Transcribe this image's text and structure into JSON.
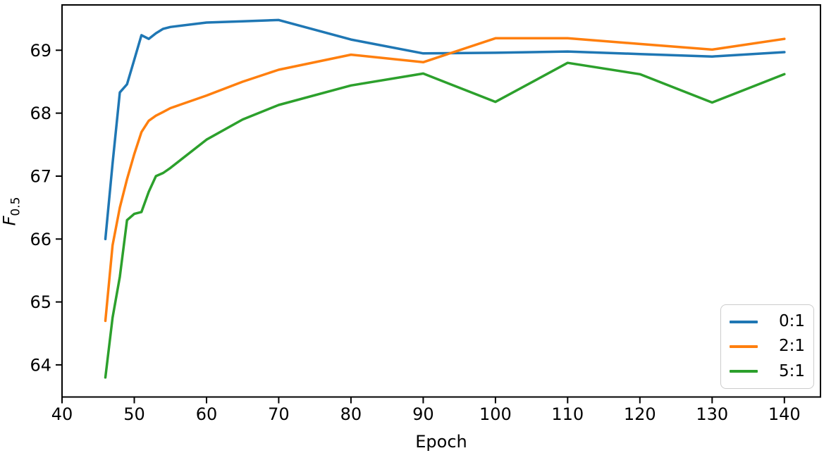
{
  "chart_data": {
    "type": "line",
    "title": "",
    "xlabel": "Epoch",
    "ylabel": "F_0.5",
    "ylabel_main": "F",
    "ylabel_sub": "0.5",
    "xlim": [
      40,
      145
    ],
    "ylim": [
      63.49,
      69.72
    ],
    "xticks": [
      40,
      50,
      60,
      70,
      80,
      90,
      100,
      110,
      120,
      130,
      140
    ],
    "yticks": [
      64,
      65,
      66,
      67,
      68,
      69
    ],
    "grid": false,
    "legend_position": "lower right",
    "x": [
      46,
      47,
      48,
      49,
      50,
      51,
      52,
      53,
      54,
      55,
      60,
      65,
      70,
      80,
      90,
      100,
      110,
      120,
      130,
      140
    ],
    "series": [
      {
        "name": "0:1",
        "color": "#1f77b4",
        "values": [
          66.0,
          67.2,
          68.33,
          68.46,
          68.85,
          69.24,
          69.18,
          69.27,
          69.34,
          69.37,
          69.44,
          69.46,
          69.48,
          69.17,
          68.95,
          68.96,
          68.98,
          68.94,
          68.9,
          68.97
        ]
      },
      {
        "name": "2:1",
        "color": "#ff7f0e",
        "values": [
          64.7,
          65.9,
          66.5,
          66.95,
          67.35,
          67.7,
          67.88,
          67.96,
          68.02,
          68.08,
          68.28,
          68.5,
          68.69,
          68.93,
          68.81,
          69.19,
          69.19,
          69.1,
          69.01,
          69.18
        ]
      },
      {
        "name": "5:1",
        "color": "#2ca02c",
        "values": [
          63.8,
          64.75,
          65.4,
          66.3,
          66.4,
          66.43,
          66.75,
          67.0,
          67.05,
          67.13,
          67.58,
          67.9,
          68.13,
          68.44,
          68.63,
          68.18,
          68.8,
          68.62,
          68.17,
          68.62
        ]
      }
    ]
  }
}
